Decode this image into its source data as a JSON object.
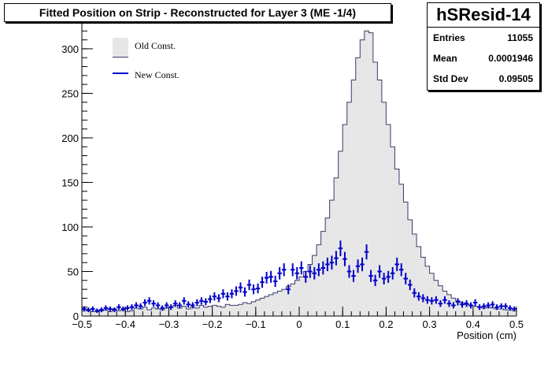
{
  "title": "Fitted Position on Strip - Reconstructed for Layer 3  (ME -1/4)",
  "stats": {
    "name": "hSResid-14",
    "entries_label": "Entries",
    "entries_value": "11055",
    "mean_label": "Mean",
    "mean_value": "0.0001946",
    "std_label": "Std Dev",
    "std_value": "0.09505"
  },
  "legend": {
    "old_label": "Old Const.",
    "new_label": "New Const."
  },
  "colors": {
    "old_fill": "#e6e6e6",
    "old_line": "#3a3a6a",
    "new_marker": "#0000cc"
  },
  "chart_data": {
    "type": "bar",
    "xlabel": "Position (cm)",
    "xlim": [
      -0.5,
      0.5
    ],
    "ylim": [
      0,
      330
    ],
    "x_ticks": [
      -0.5,
      -0.4,
      -0.3,
      -0.2,
      -0.1,
      0,
      0.1,
      0.2,
      0.3,
      0.4,
      0.5
    ],
    "x_tick_labels": [
      "−0.5",
      "−0.4",
      "−0.3",
      "−0.2",
      "−0.1",
      "0",
      "0.1",
      "0.2",
      "0.3",
      "0.4",
      "0.5"
    ],
    "y_ticks": [
      0,
      50,
      100,
      150,
      200,
      250,
      300
    ],
    "y_tick_labels": [
      "0",
      "50",
      "100",
      "150",
      "200",
      "250",
      "300"
    ],
    "bin_width": 0.01,
    "bin_start": -0.5,
    "series": [
      {
        "name": "Old Const.",
        "style": "filled-histogram",
        "values": [
          6,
          6,
          5,
          5,
          6,
          7,
          5,
          8,
          6,
          7,
          5,
          6,
          9,
          8,
          10,
          7,
          9,
          8,
          7,
          9,
          10,
          12,
          9,
          11,
          8,
          10,
          9,
          12,
          10,
          11,
          12,
          11,
          10,
          13,
          12,
          12,
          13,
          15,
          14,
          16,
          18,
          20,
          22,
          24,
          26,
          28,
          30,
          33,
          36,
          40,
          44,
          50,
          58,
          68,
          80,
          95,
          110,
          130,
          155,
          185,
          215,
          240,
          265,
          290,
          310,
          320,
          318,
          285,
          265,
          240,
          215,
          190,
          165,
          148,
          128,
          108,
          92,
          78,
          66,
          56,
          48,
          40,
          34,
          28,
          24,
          20,
          17,
          15,
          13,
          12,
          11,
          10,
          9,
          10,
          9,
          8,
          8,
          7,
          7,
          6
        ]
      },
      {
        "name": "New Const.",
        "style": "error-points",
        "values": [
          8,
          7,
          8,
          6,
          7,
          9,
          8,
          7,
          10,
          8,
          9,
          10,
          12,
          11,
          15,
          17,
          14,
          12,
          9,
          12,
          10,
          14,
          12,
          17,
          13,
          12,
          15,
          17,
          16,
          19,
          22,
          20,
          25,
          22,
          25,
          28,
          32,
          27,
          35,
          30,
          31,
          38,
          43,
          44,
          39,
          48,
          52,
          30,
          52,
          48,
          54,
          44,
          50,
          48,
          52,
          54,
          58,
          60,
          65,
          76,
          64,
          50,
          45,
          56,
          58,
          72,
          45,
          40,
          50,
          42,
          44,
          48,
          58,
          52,
          42,
          35,
          26,
          22,
          20,
          18,
          17,
          18,
          14,
          18,
          14,
          12,
          16,
          13,
          14,
          12,
          15,
          10,
          11,
          12,
          13,
          10,
          11,
          11,
          9,
          8
        ]
      }
    ]
  }
}
